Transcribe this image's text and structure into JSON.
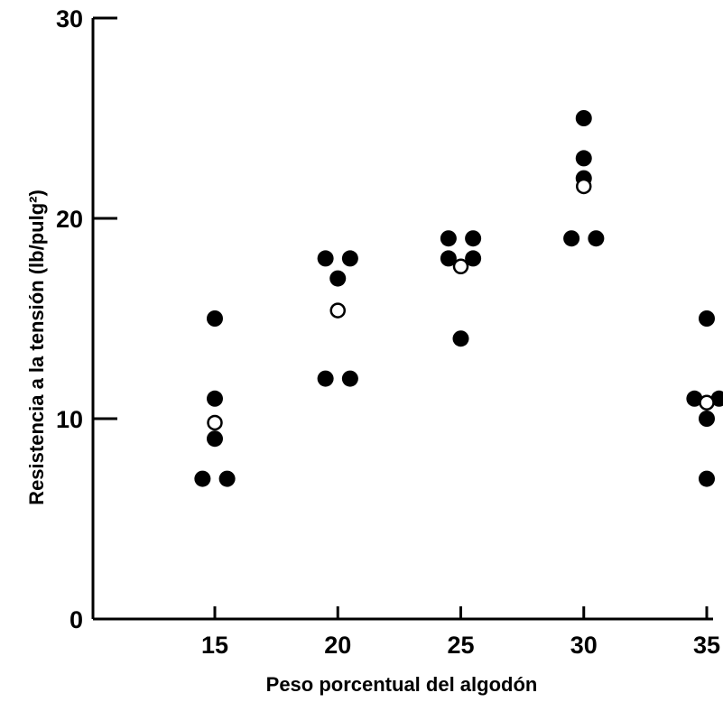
{
  "chart_data": {
    "type": "scatter",
    "title": "",
    "xlabel": "Peso porcentual del algodón",
    "ylabel": "Resistencia a la tensión (lb/pulg²)",
    "xlim": [
      10.5,
      35.5
    ],
    "ylim": [
      0,
      30
    ],
    "x_ticks": [
      15,
      20,
      25,
      30,
      35
    ],
    "y_ticks": [
      0,
      10,
      20,
      30
    ],
    "grid": false,
    "series": [
      {
        "marker": "filled-circle",
        "color": "#000000",
        "points": [
          [
            14.5,
            7
          ],
          [
            15.5,
            7
          ],
          [
            15,
            9
          ],
          [
            15,
            11
          ],
          [
            15,
            15
          ],
          [
            19.5,
            12
          ],
          [
            20.5,
            12
          ],
          [
            20,
            17
          ],
          [
            19.5,
            18
          ],
          [
            20.5,
            18
          ],
          [
            25,
            14
          ],
          [
            24.5,
            18
          ],
          [
            25.5,
            18
          ],
          [
            24.5,
            19
          ],
          [
            25.5,
            19
          ],
          [
            29.5,
            19
          ],
          [
            30.5,
            19
          ],
          [
            30,
            22
          ],
          [
            30,
            23
          ],
          [
            30,
            25
          ],
          [
            35,
            7
          ],
          [
            35,
            10
          ],
          [
            34.5,
            11
          ],
          [
            35.5,
            11
          ],
          [
            35,
            15
          ]
        ]
      },
      {
        "marker": "open-circle",
        "color": "#000000",
        "points": [
          [
            15,
            9.8
          ],
          [
            20,
            15.4
          ],
          [
            25,
            17.6
          ],
          [
            30,
            21.6
          ],
          [
            35,
            10.8
          ]
        ]
      }
    ]
  }
}
